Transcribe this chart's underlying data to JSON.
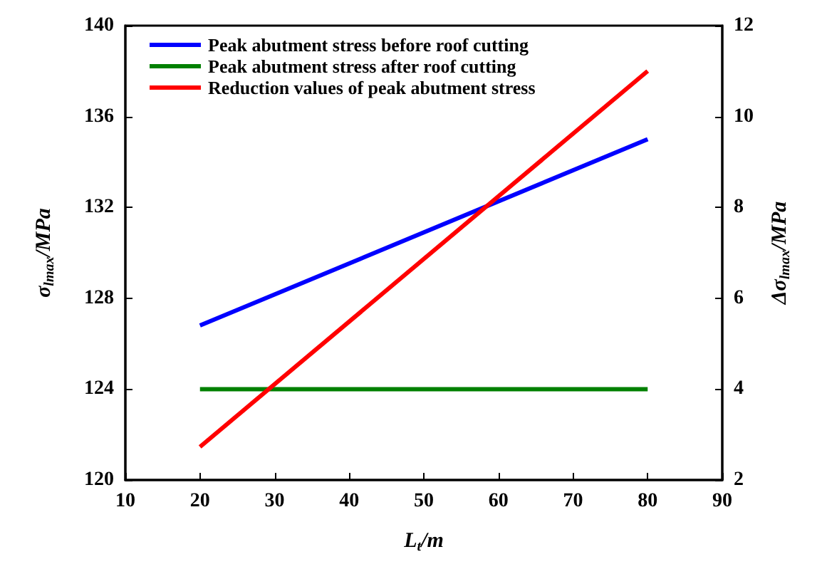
{
  "chart_data": {
    "type": "line",
    "xlabel": "L$_{t}$/m",
    "ylabel": "σ$_{lmax}$/MPa",
    "y2label": "Δσ$_{lmax}$/MPa",
    "x": [
      20,
      80
    ],
    "series": [
      {
        "name": "Peak abutment stress before roof cutting",
        "color": "#0000ff",
        "values": [
          126.8,
          135.0
        ]
      },
      {
        "name": "Peak abutment stress after roof cutting",
        "color": "#008000",
        "values": [
          124.0,
          124.0
        ]
      },
      {
        "name": "Reduction values of peak abutment stress",
        "color": "#ff0000",
        "values": [
          2.73,
          11.0
        ],
        "axis": "y2"
      }
    ],
    "xlim": [
      10,
      90
    ],
    "xticks": [
      10,
      20,
      30,
      40,
      50,
      60,
      70,
      80,
      90
    ],
    "ylim": [
      120,
      140
    ],
    "yticks": [
      120,
      124,
      128,
      132,
      136,
      140
    ],
    "y2lim": [
      2,
      12
    ],
    "y2ticks": [
      2,
      4,
      6,
      8,
      10,
      12
    ],
    "legend": "top left",
    "grid": false,
    "marker": "none",
    "line_style": "solid"
  }
}
